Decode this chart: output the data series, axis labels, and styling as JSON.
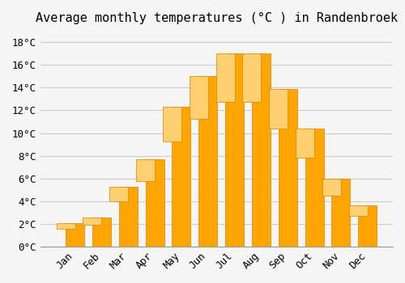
{
  "months": [
    "Jan",
    "Feb",
    "Mar",
    "Apr",
    "May",
    "Jun",
    "Jul",
    "Aug",
    "Sep",
    "Oct",
    "Nov",
    "Dec"
  ],
  "values": [
    2.1,
    2.6,
    5.3,
    7.7,
    12.3,
    15.0,
    17.0,
    17.0,
    13.9,
    10.4,
    6.0,
    3.6
  ],
  "bar_color": "#FFA500",
  "bar_edge_color": "#E08000",
  "title": "Average monthly temperatures (°C ) in Randenbroek",
  "ylim": [
    0,
    19
  ],
  "ytick_values": [
    0,
    2,
    4,
    6,
    8,
    10,
    12,
    14,
    16,
    18
  ],
  "background_color": "#f5f5f5",
  "grid_color": "#cccccc",
  "title_fontsize": 11,
  "tick_fontsize": 9,
  "bar_color_gradient_top": "#FFB733",
  "bar_color_gradient_bottom": "#FF9500"
}
